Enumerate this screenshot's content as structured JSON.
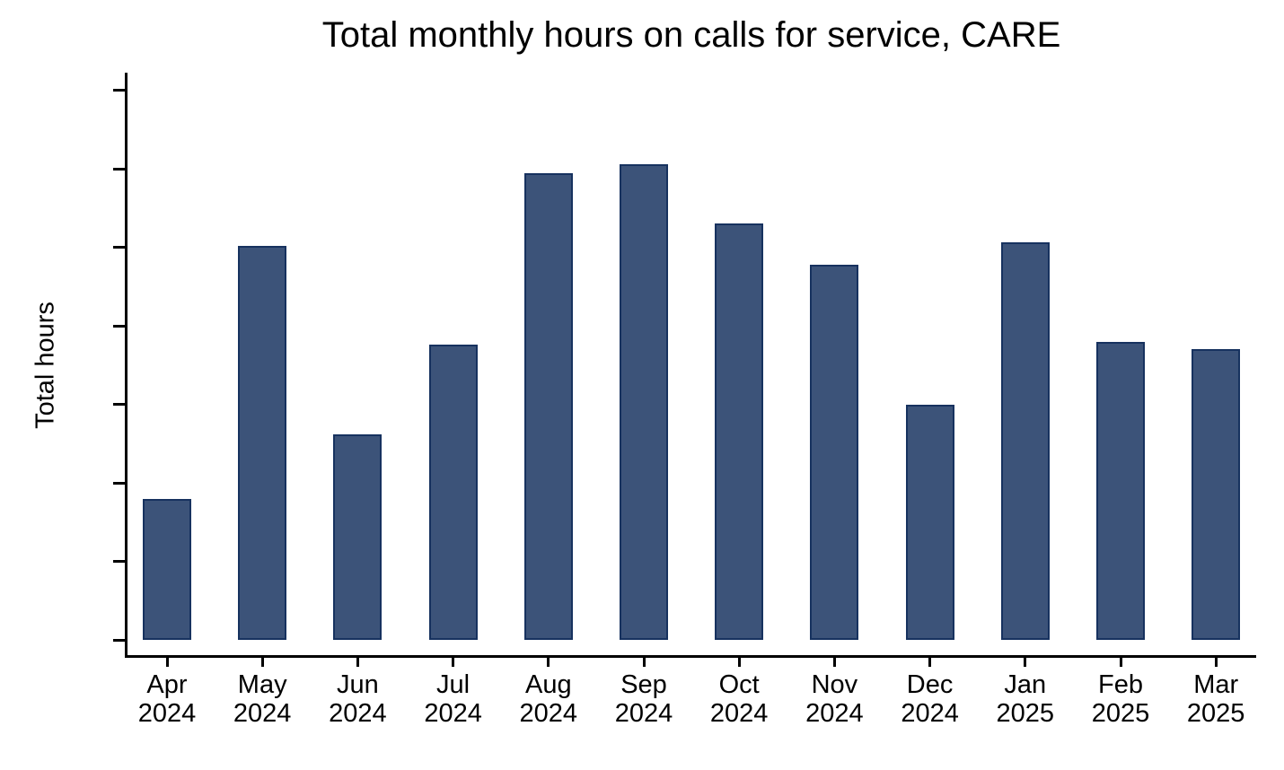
{
  "title": "Total monthly hours on calls for service, CARE",
  "colors": {
    "bar_fill": "#3C5379",
    "bar_border": "#17325F",
    "axis": "#000000",
    "text": "#000000",
    "background": "#FFFFFF"
  },
  "chart_data": {
    "type": "bar",
    "title": "Total monthly hours on calls for service, CARE",
    "xlabel": "",
    "ylabel": "Total hours",
    "categories": [
      "Apr 2024",
      "May 2024",
      "Jun 2024",
      "Jul 2024",
      "Aug 2024",
      "Sep 2024",
      "Oct 2024",
      "Nov 2024",
      "Dec 2024",
      "Jan 2025",
      "Feb 2025",
      "Mar 2025"
    ],
    "values": [
      9.0,
      25.1,
      13.1,
      18.8,
      29.7,
      30.3,
      26.5,
      23.9,
      15.0,
      25.3,
      19.0,
      18.5
    ],
    "bar_labels": [
      "9.0",
      "25.1",
      "13.1",
      "18.8",
      "29.7",
      "30.3",
      "26.5",
      "23.9",
      "15.0",
      "25.3",
      "19.0",
      "18.5"
    ],
    "ylim": [
      0,
      35
    ],
    "yticks": [
      0,
      5,
      10,
      15,
      20,
      25,
      30,
      35
    ],
    "grid": false,
    "legend": "none"
  }
}
